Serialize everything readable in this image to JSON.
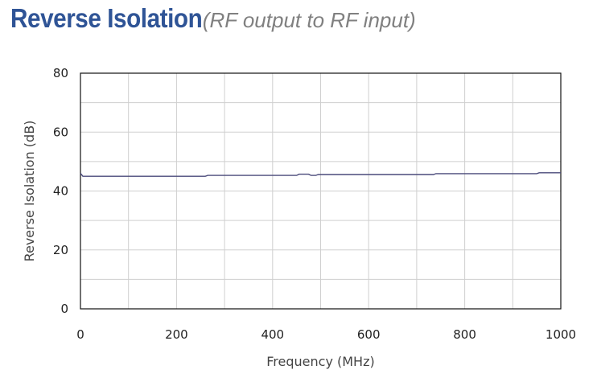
{
  "title": {
    "main": "Reverse Isolation",
    "sub": "(RF output to RF input)"
  },
  "colors": {
    "title": "#2f5496",
    "subtitle": "#808080",
    "series": "#4a4a7a",
    "grid": "#cfcfcf",
    "axis_label": "#3a3a6a"
  },
  "chart_data": {
    "type": "line",
    "title": "Reverse Isolation",
    "subtitle": "(RF output to RF input)",
    "xlabel": "Frequency (MHz)",
    "ylabel": "Reverse Isolation (dB)",
    "xlim": [
      0,
      1000
    ],
    "ylim": [
      0,
      80
    ],
    "xticks": [
      0,
      200,
      400,
      600,
      800,
      1000
    ],
    "yticks": [
      0,
      20,
      40,
      60,
      80
    ],
    "xgrid_step": 100,
    "ygrid_step": 10,
    "grid": true,
    "series": [
      {
        "x": [
          0,
          5,
          260,
          265,
          450,
          455,
          475,
          480,
          490,
          495,
          735,
          740,
          950,
          955,
          1000
        ],
        "y": [
          46,
          45,
          45,
          45.3,
          45.3,
          45.7,
          45.7,
          45.3,
          45.3,
          45.6,
          45.6,
          45.9,
          45.9,
          46.2,
          46.2
        ]
      }
    ]
  }
}
